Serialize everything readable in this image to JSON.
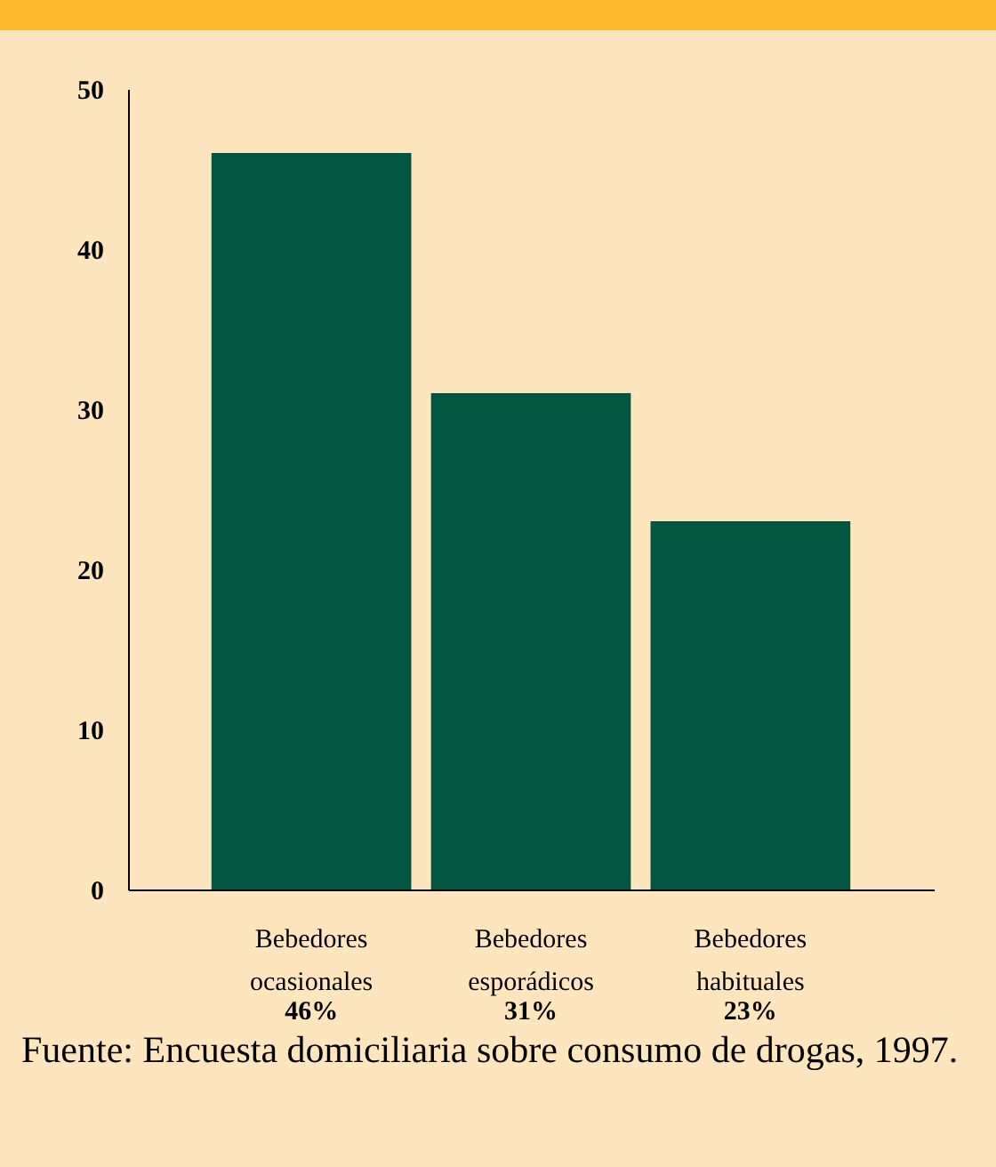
{
  "chart_data": {
    "type": "bar",
    "categories": [
      "Bebedores ocasionales",
      "Bebedores esporádicos",
      "Bebedores habituales"
    ],
    "values": [
      46,
      31,
      23
    ],
    "value_labels": [
      "46%",
      "31%",
      "23%"
    ],
    "color": "#02563f",
    "ylim": [
      0,
      50
    ],
    "yticks": [
      0,
      10,
      20,
      30,
      40,
      50
    ],
    "annotations": [
      "Fuente: Encuesta domiciliaria sobre consumo de drogas, 1997."
    ]
  }
}
